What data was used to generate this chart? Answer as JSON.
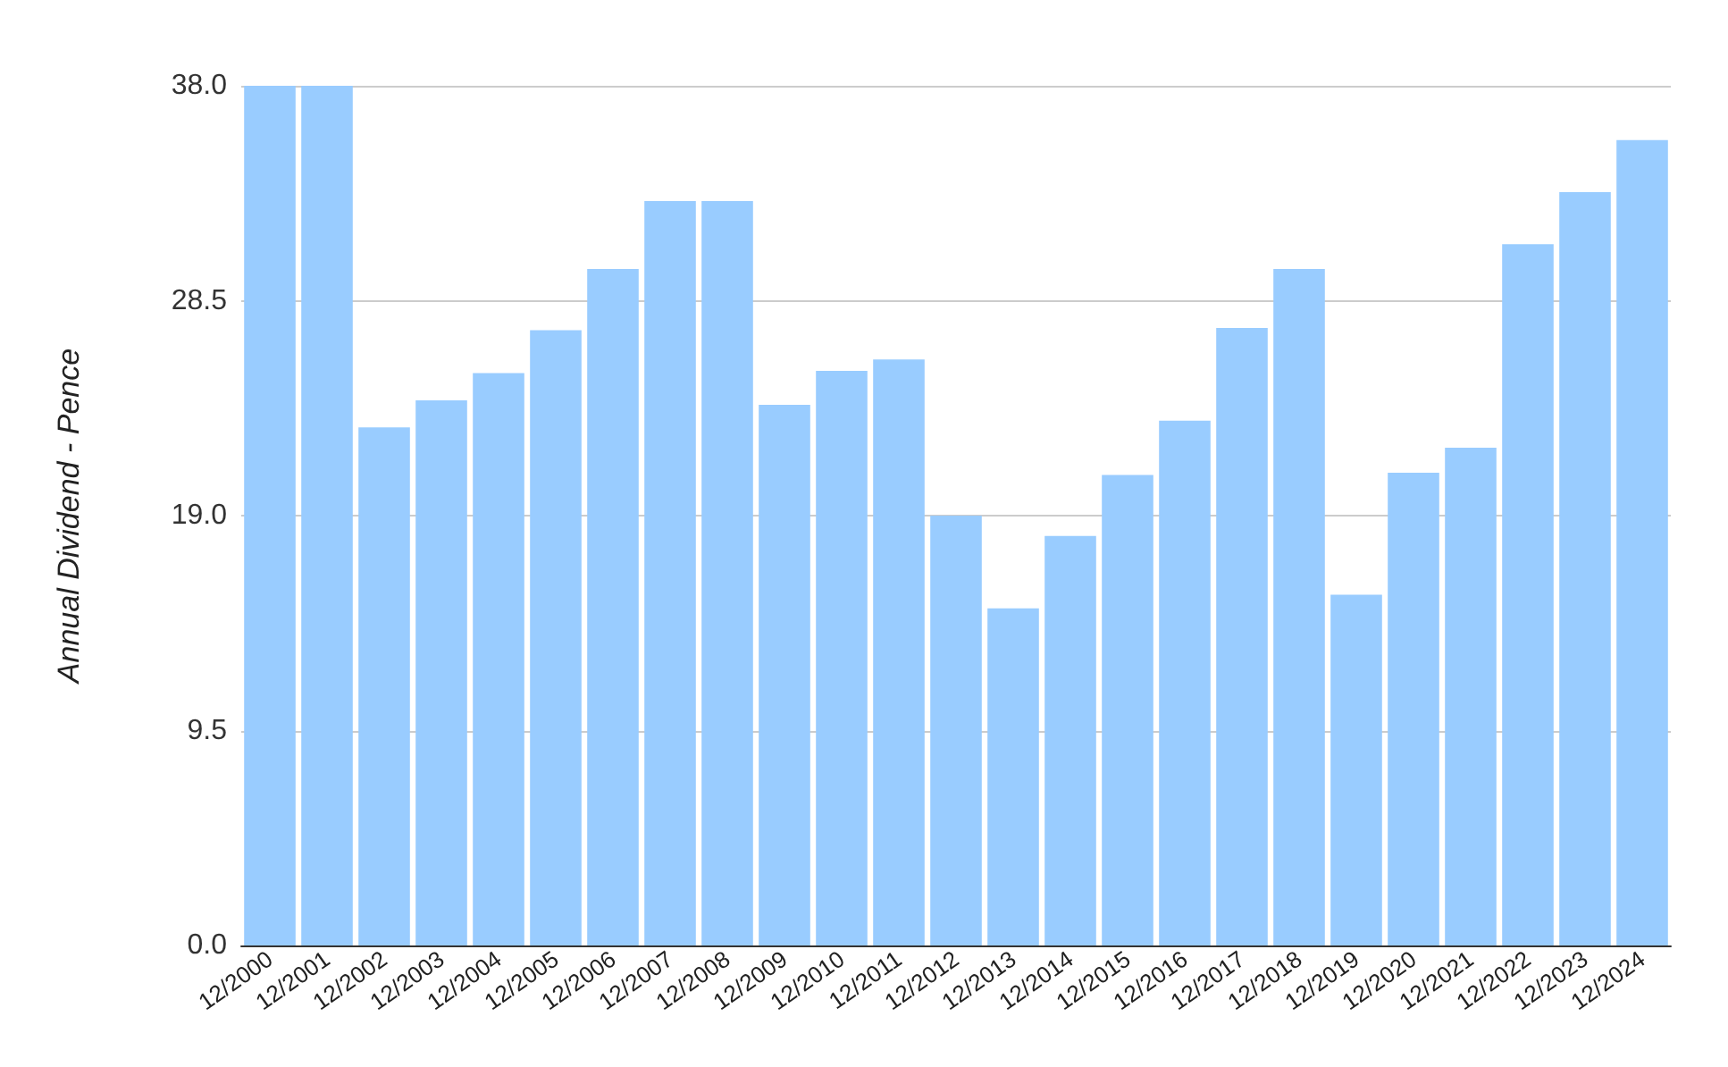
{
  "chart_data": {
    "type": "bar",
    "ylabel": "Annual Dividend - Pence",
    "categories": [
      "12/2000",
      "12/2001",
      "12/2002",
      "12/2003",
      "12/2004",
      "12/2005",
      "12/2006",
      "12/2007",
      "12/2008",
      "12/2009",
      "12/2010",
      "12/2011",
      "12/2012",
      "12/2013",
      "12/2014",
      "12/2015",
      "12/2016",
      "12/2017",
      "12/2018",
      "12/2019",
      "12/2020",
      "12/2021",
      "12/2022",
      "12/2023",
      "12/2024"
    ],
    "values": [
      38.0,
      38.0,
      22.9,
      24.1,
      25.3,
      27.2,
      29.9,
      32.9,
      32.9,
      23.9,
      25.4,
      25.9,
      19.0,
      14.9,
      18.1,
      20.8,
      23.2,
      27.3,
      29.9,
      15.5,
      20.9,
      22.0,
      31.0,
      33.3,
      35.6
    ],
    "color": "#99ccff",
    "ylim": [
      0,
      38
    ],
    "yticks": [
      {
        "value": 0,
        "label": "0.0"
      },
      {
        "value": 9.5,
        "label": "9.5"
      },
      {
        "value": 19,
        "label": "19.0"
      },
      {
        "value": 28.5,
        "label": "28.5"
      },
      {
        "value": 38,
        "label": "38.0"
      }
    ],
    "grid": "y"
  }
}
